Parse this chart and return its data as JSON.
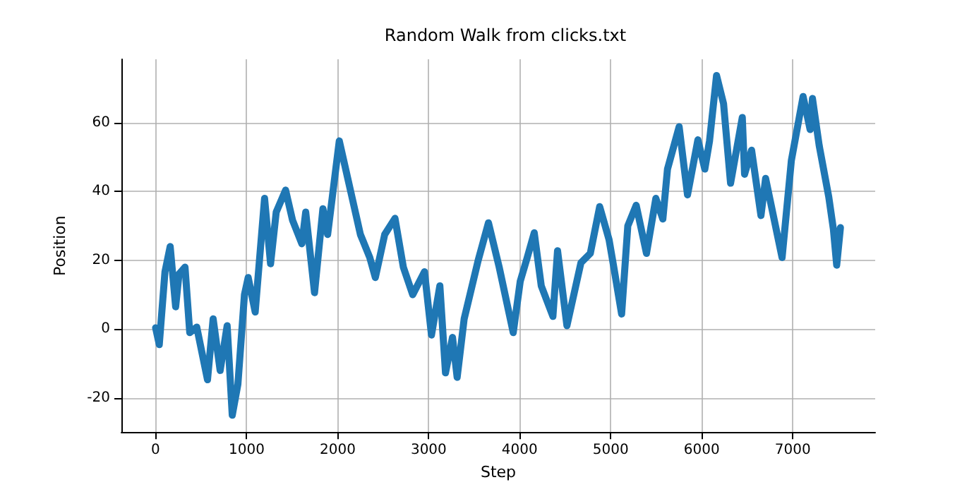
{
  "chart_data": {
    "type": "line",
    "title": "Random Walk from clicks.txt",
    "xlabel": "Step",
    "ylabel": "Position",
    "x": [
      0,
      40,
      103,
      160,
      220,
      257,
      323,
      375,
      452,
      570,
      632,
      709,
      786,
      842,
      904,
      976,
      1017,
      1094,
      1197,
      1263,
      1325,
      1428,
      1505,
      1607,
      1649,
      1746,
      1838,
      1890,
      2018,
      2146,
      2250,
      2353,
      2414,
      2517,
      2630,
      2722,
      2825,
      2954,
      3031,
      3123,
      3185,
      3262,
      3313,
      3390,
      3544,
      3657,
      3775,
      3929,
      4006,
      4083,
      4160,
      4237,
      4365,
      4416,
      4519,
      4673,
      4776,
      4879,
      4982,
      5034,
      5120,
      5188,
      5280,
      5393,
      5496,
      5573,
      5624,
      5752,
      5844,
      5958,
      6034,
      6086,
      6163,
      6240,
      6317,
      6446,
      6471,
      6548,
      6651,
      6702,
      6883,
      6985,
      7114,
      7191,
      7217,
      7291,
      7396,
      7447,
      7483,
      7524
    ],
    "series": [
      {
        "color": "#1f77b4",
        "values": [
          0.4,
          -4.5,
          16.7,
          24,
          6.5,
          16,
          18,
          -1,
          0.6,
          -14.7,
          3,
          -12,
          1,
          -25,
          -16,
          10,
          15,
          5,
          38,
          19,
          34,
          40.4,
          31.6,
          24.8,
          34,
          10.6,
          35,
          27.5,
          54.7,
          39.7,
          27.5,
          20.8,
          15,
          27.5,
          32.2,
          18,
          10,
          16.7,
          -1.7,
          12.6,
          -12.7,
          -2.4,
          -14,
          3,
          20,
          30.9,
          18,
          -1,
          13.9,
          20.8,
          28,
          12.6,
          3.7,
          22.8,
          1,
          19.3,
          22,
          35.6,
          26,
          18,
          4.4,
          30,
          36,
          22,
          38,
          32,
          46.5,
          58.8,
          39,
          55,
          46.5,
          54.7,
          73.7,
          65.5,
          42.4,
          61.5,
          45,
          52,
          33,
          43.8,
          20.8,
          49,
          67.6,
          58,
          67,
          53.3,
          38.4,
          29,
          18.6,
          29.5
        ]
      }
    ],
    "xlim": [
      -376,
      7906
    ],
    "ylim": [
      -29.9,
      78.4
    ],
    "xticks": [
      0,
      1000,
      2000,
      3000,
      4000,
      5000,
      6000,
      7000
    ],
    "yticks": [
      -20,
      0,
      20,
      40,
      60
    ],
    "grid": true,
    "marker": "circle",
    "line_style": "solid"
  }
}
